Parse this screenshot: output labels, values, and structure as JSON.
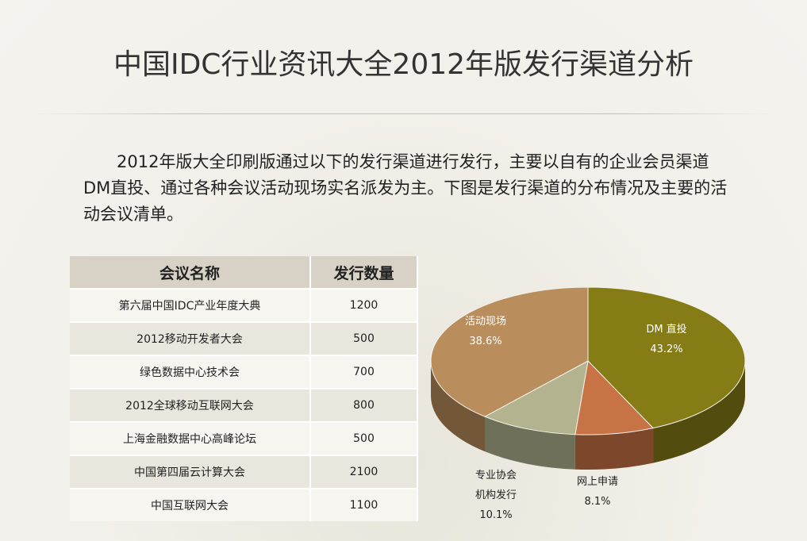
{
  "title": "中国IDC行业资讯大全2012年版发行渠道分析",
  "intro": "2012年版大全印刷版通过以下的发行渠道进行发行，主要以自有的企业会员渠道DM直投、通过各种会议活动现场实名派发为主。下图是发行渠道的分布情况及主要的活动会议清单。",
  "table": {
    "header": [
      "会议名称",
      "发行数量"
    ],
    "rows": [
      [
        "第六届中国IDC产业年度大典",
        1200
      ],
      [
        "2012移动开发者大会",
        500
      ],
      [
        "绿色数据中心技术会",
        700
      ],
      [
        "2012全球移动互联网大会",
        800
      ],
      [
        "上海金融数据中心高峰论坛",
        500
      ],
      [
        "中国第四届云计算大会",
        2100
      ],
      [
        "中国互联网大会",
        1100
      ]
    ]
  },
  "chart_data": {
    "type": "pie",
    "categories": [
      "DM 直投",
      "网上申请",
      "专业协会机构发行",
      "活动现场"
    ],
    "values": [
      43.2,
      8.1,
      10.1,
      38.6
    ],
    "value_labels": [
      "43.2%",
      "8.1%",
      "10.1%",
      "38.6%"
    ],
    "colors": [
      "#857c16",
      "#c87346",
      "#b3b48f",
      "#b98d5c"
    ]
  }
}
